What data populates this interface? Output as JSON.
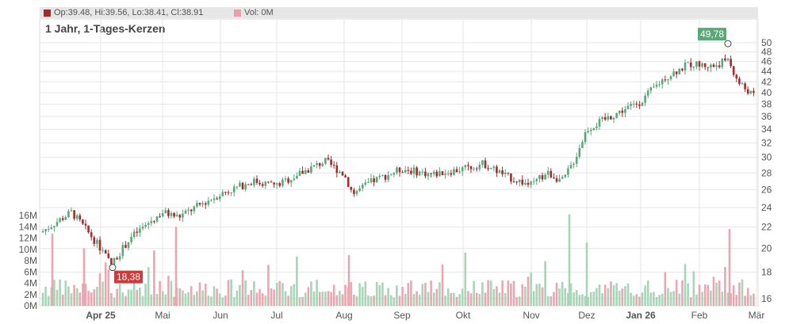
{
  "header": {
    "ohlc_text": "Op:39.48, Hi:39.56, Lo:38.41, Cl:38.91",
    "vol_text": "Vol: 0M",
    "ohlc_color": "#a52a2a",
    "vol_color": "#e8a0a8"
  },
  "chart_data": {
    "type": "candlestick",
    "title": "1 Jahr, 1-Tages-Kerzen",
    "x_tick_labels": [
      {
        "label": "Apr 25",
        "bold": true
      },
      {
        "label": "Mai",
        "bold": false
      },
      {
        "label": "Jun",
        "bold": false
      },
      {
        "label": "Jul",
        "bold": false
      },
      {
        "label": "Aug",
        "bold": false
      },
      {
        "label": "Sep",
        "bold": false
      },
      {
        "label": "Okt",
        "bold": false
      },
      {
        "label": "Nov",
        "bold": false
      },
      {
        "label": "Dez",
        "bold": false
      },
      {
        "label": "Jan 26",
        "bold": true
      },
      {
        "label": "Feb",
        "bold": false
      },
      {
        "label": "Mär",
        "bold": false
      }
    ],
    "price_axis_labels": [
      "50",
      "48",
      "46",
      "44",
      "42",
      "40",
      "38",
      "36",
      "34",
      "32",
      "30",
      "28",
      "26",
      "24",
      "22",
      "20",
      "18",
      "16"
    ],
    "volume_axis_labels": [
      "16M",
      "14M",
      "12M",
      "10M",
      "8M",
      "6M",
      "4M",
      "2M",
      "0M"
    ],
    "price_scale": "log",
    "price_range": [
      15.5,
      52.5
    ],
    "volume_range": [
      0,
      16
    ],
    "price_series_monthly": [
      21.5,
      24.0,
      25.2,
      27.2,
      26.5,
      28.0,
      28.8,
      27.5,
      29.0,
      27.0,
      30.5,
      36.0,
      38.5,
      44.0,
      45.5,
      39.0
    ],
    "annotations": [
      {
        "text": "49,78",
        "value": 49.78,
        "type": "high",
        "color": "#5aa77a"
      },
      {
        "text": "18,38",
        "value": 18.38,
        "type": "low",
        "color": "#cc3a3a"
      }
    ],
    "colors": {
      "up": "#5aa77a",
      "down": "#a52a2a",
      "vol_up": "#a9d4b8",
      "vol_down": "#eaa7b1",
      "grid": "#e6e6e6"
    }
  }
}
